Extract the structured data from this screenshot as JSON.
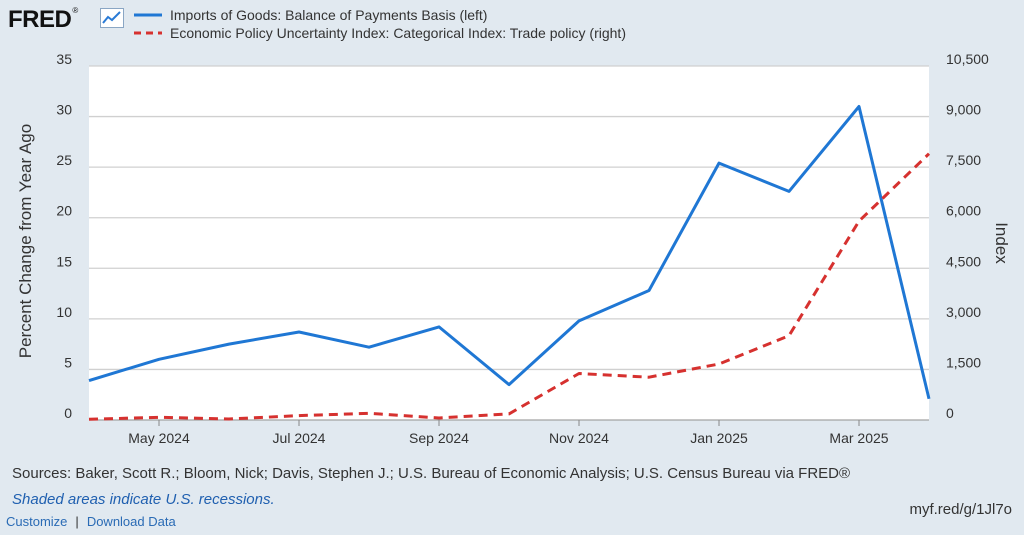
{
  "logo": {
    "text": "FRED",
    "reg": "®"
  },
  "legend": [
    {
      "label": "Imports of Goods: Balance of Payments Basis (left)",
      "color": "#1f77d4",
      "style": "solid"
    },
    {
      "label": "Economic Policy Uncertainty Index: Categorical Index: Trade policy (right)",
      "color": "#d6312f",
      "style": "dashed"
    }
  ],
  "footer": {
    "sources": "Sources: Baker, Scott R.; Bloom, Nick; Davis, Stephen J.; U.S. Bureau of Economic Analysis; U.S. Census Bureau via FRED®",
    "shaded_note": "Shaded areas indicate U.S. recessions.",
    "customize": "Customize",
    "separator": "|",
    "download": "Download Data",
    "short_url": "myf.red/g/1Jl7o"
  },
  "chart_data": {
    "type": "line",
    "x": [
      "2024-04",
      "2024-05",
      "2024-06",
      "2024-07",
      "2024-08",
      "2024-09",
      "2024-10",
      "2024-11",
      "2024-12",
      "2025-01",
      "2025-02",
      "2025-03",
      "2025-04"
    ],
    "x_tick_labels": [
      "May 2024",
      "Jul 2024",
      "Sep 2024",
      "Nov 2024",
      "Jan 2025",
      "Mar 2025"
    ],
    "x_tick_positions": [
      "2024-05",
      "2024-07",
      "2024-09",
      "2024-11",
      "2025-01",
      "2025-03"
    ],
    "ylabel": "Percent Change from Year Ago",
    "ylabel_right": "Index",
    "ylim": [
      0,
      35
    ],
    "ylim_right": [
      0,
      10500
    ],
    "y_ticks": [
      0,
      5,
      10,
      15,
      20,
      25,
      30,
      35
    ],
    "y_ticks_right": [
      "0",
      "1,500",
      "3,000",
      "4,500",
      "6,000",
      "7,500",
      "9,000",
      "10,500"
    ],
    "y_right_values": [
      0,
      1500,
      3000,
      4500,
      6000,
      7500,
      9000,
      10500
    ],
    "grid": true,
    "series": [
      {
        "name": "Imports of Goods: Balance of Payments Basis (left)",
        "axis": "left",
        "color": "#1f77d4",
        "style": "solid",
        "values": [
          3.9,
          6.0,
          7.5,
          8.7,
          7.2,
          9.2,
          3.5,
          9.8,
          12.8,
          25.4,
          22.6,
          31.0,
          2.1
        ]
      },
      {
        "name": "Economic Policy Uncertainty Index: Categorical Index: Trade policy (right)",
        "axis": "right",
        "color": "#d6312f",
        "style": "dashed",
        "values": [
          20,
          80,
          30,
          130,
          200,
          60,
          180,
          1380,
          1270,
          1660,
          2500,
          5900,
          7900
        ]
      }
    ]
  }
}
